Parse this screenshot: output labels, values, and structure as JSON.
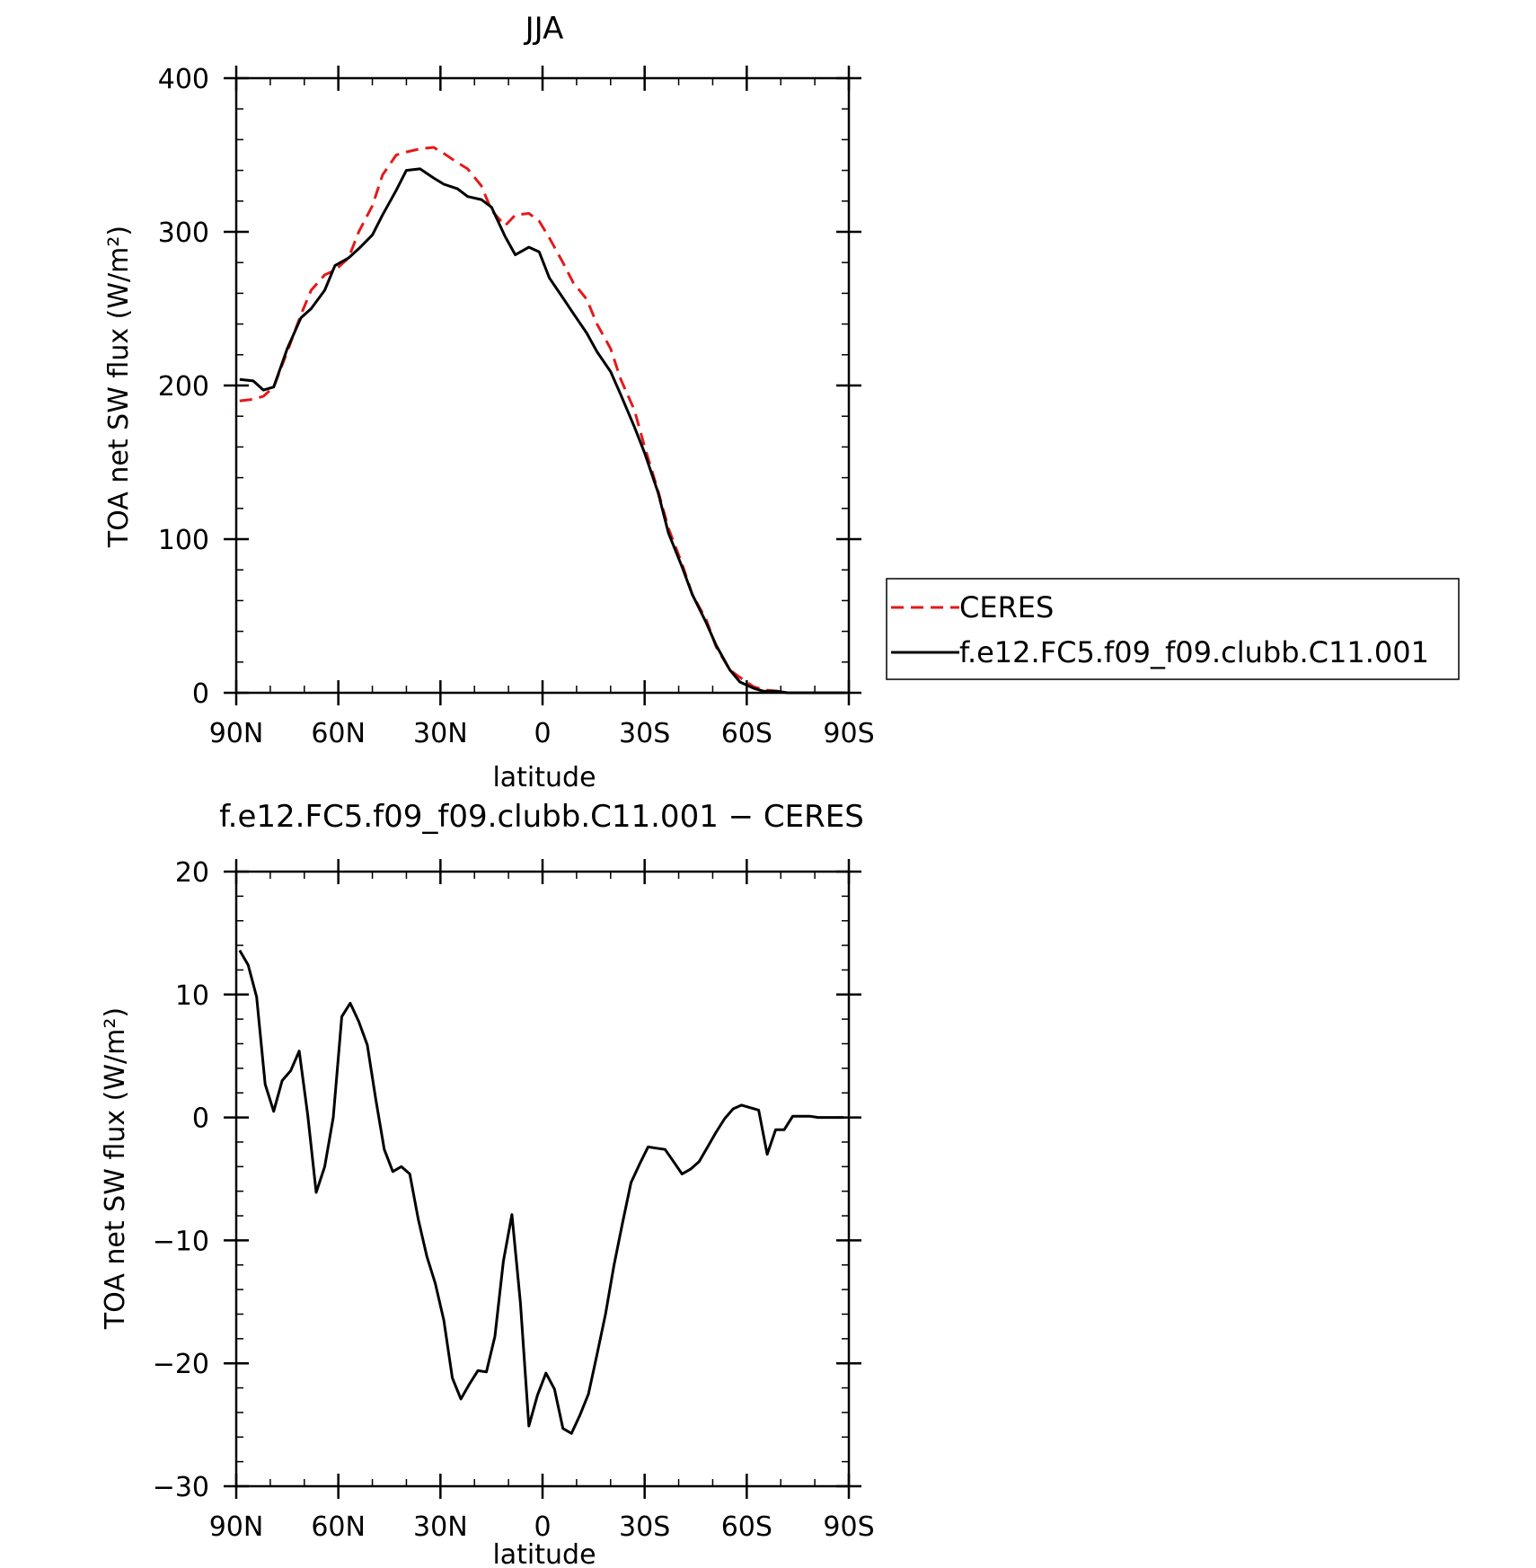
{
  "colors": {
    "ceres": "#e31a1c",
    "model": "#000000",
    "axis": "#000000",
    "background": "#ffffff"
  },
  "chart_data": [
    {
      "type": "line",
      "title": "JJA",
      "xlabel": "latitude",
      "ylabel": "TOA net SW flux (W/m²)",
      "xlim": [
        90,
        -90
      ],
      "ylim": [
        0,
        400
      ],
      "x_direction": "north-to-south",
      "xticks": [
        {
          "value": 90,
          "label": "90N"
        },
        {
          "value": 60,
          "label": "60N"
        },
        {
          "value": 30,
          "label": "30N"
        },
        {
          "value": 0,
          "label": "0"
        },
        {
          "value": -30,
          "label": "30S"
        },
        {
          "value": -60,
          "label": "60S"
        },
        {
          "value": -90,
          "label": "90S"
        }
      ],
      "yticks": [
        0,
        100,
        200,
        300,
        400
      ],
      "legend_position": "right, outside plot",
      "grid": false,
      "series": [
        {
          "name": "CERES",
          "style": "dashed",
          "color": "#e31a1c",
          "x": [
            89,
            85,
            82,
            79,
            75,
            71,
            68,
            64,
            61,
            57,
            54,
            50,
            47,
            43,
            40,
            36,
            32,
            29,
            25,
            22,
            18,
            15,
            11,
            8,
            4,
            1,
            -2,
            -6,
            -9,
            -13,
            -16,
            -20,
            -23,
            -27,
            -30,
            -34,
            -37,
            -41,
            -44,
            -48,
            -51,
            -55,
            -58,
            -62,
            -65,
            -69,
            -72,
            -76,
            -79,
            -83,
            -86,
            -89
          ],
          "y": [
            190,
            191,
            193,
            199,
            222,
            246,
            262,
            272,
            275,
            283,
            300,
            317,
            337,
            350,
            352,
            354,
            355,
            351,
            345,
            341,
            330,
            314,
            304,
            311,
            312,
            307,
            296,
            280,
            267,
            256,
            240,
            224,
            204,
            184,
            160,
            131,
            107,
            84,
            64,
            48,
            30,
            15,
            10,
            4,
            2,
            1,
            0,
            0,
            0,
            0,
            0,
            0
          ]
        },
        {
          "name": "f.e12.FC5.f09_f09.clubb.C11.001",
          "style": "solid",
          "color": "#000000",
          "x": [
            89,
            85,
            82,
            79,
            75,
            71,
            68,
            64,
            61,
            57,
            54,
            50,
            47,
            43,
            40,
            36,
            32,
            29,
            25,
            22,
            18,
            15,
            11,
            8,
            4,
            1,
            -2,
            -6,
            -9,
            -13,
            -16,
            -20,
            -23,
            -27,
            -30,
            -34,
            -37,
            -41,
            -44,
            -48,
            -51,
            -55,
            -58,
            -62,
            -65,
            -69,
            -72,
            -76,
            -79,
            -83,
            -86,
            -89
          ],
          "y": [
            204,
            203,
            197,
            199,
            224,
            244,
            250,
            262,
            278,
            283,
            289,
            298,
            311,
            327,
            340,
            341,
            335,
            331,
            328,
            323,
            321,
            316,
            297,
            285,
            290,
            287,
            270,
            257,
            247,
            234,
            222,
            209,
            194,
            173,
            156,
            130,
            104,
            82,
            64,
            46,
            31,
            15,
            7,
            3,
            1,
            1,
            0,
            0,
            0,
            0,
            0,
            0
          ]
        }
      ]
    },
    {
      "type": "line",
      "title": "f.e12.FC5.f09_f09.clubb.C11.001 − CERES",
      "xlabel": "latitude",
      "ylabel": "TOA net SW flux (W/m²)",
      "xlim": [
        90,
        -90
      ],
      "ylim": [
        -30,
        20
      ],
      "x_direction": "north-to-south",
      "xticks": [
        {
          "value": 90,
          "label": "90N"
        },
        {
          "value": 60,
          "label": "60N"
        },
        {
          "value": 30,
          "label": "30N"
        },
        {
          "value": 0,
          "label": "0"
        },
        {
          "value": -30,
          "label": "30S"
        },
        {
          "value": -60,
          "label": "60S"
        },
        {
          "value": -90,
          "label": "90S"
        }
      ],
      "yticks": [
        -30,
        -20,
        -10,
        0,
        10,
        20
      ],
      "grid": false,
      "series": [
        {
          "name": "",
          "style": "solid",
          "color": "#000000",
          "x": [
            89,
            86.5,
            84,
            81.5,
            79,
            76.5,
            74,
            71.5,
            69,
            66.5,
            64,
            61.5,
            59,
            56.5,
            54,
            51.5,
            49,
            46.5,
            44,
            41.5,
            39,
            36.5,
            34,
            31.5,
            29,
            26.5,
            24,
            21.5,
            19,
            16.5,
            14,
            11.5,
            9,
            6.5,
            4,
            1.5,
            -1,
            -3.5,
            -6,
            -8.5,
            -11,
            -13.5,
            -16,
            -18.5,
            -21,
            -23.5,
            -26,
            -28.5,
            -31,
            -33.5,
            -36,
            -38.5,
            -41,
            -43.5,
            -46,
            -48.5,
            -51,
            -53.5,
            -56,
            -58.5,
            -61,
            -63.5,
            -66,
            -68.5,
            -71,
            -73.5,
            -76,
            -78.5,
            -81,
            -83.5,
            -86,
            -88.5
          ],
          "y": [
            13.6,
            12.4,
            9.8,
            2.7,
            0.5,
            3.0,
            3.8,
            5.4,
            0.2,
            -6.1,
            -4.0,
            0.0,
            8.2,
            9.3,
            7.8,
            5.9,
            1.5,
            -2.6,
            -4.4,
            -4.0,
            -4.6,
            -8.3,
            -11.3,
            -13.5,
            -16.5,
            -21.2,
            -22.9,
            -21.7,
            -20.6,
            -20.7,
            -17.8,
            -11.7,
            -7.9,
            -15.1,
            -25.1,
            -22.6,
            -20.8,
            -22.1,
            -25.3,
            -25.7,
            -24.2,
            -22.5,
            -19.3,
            -16.0,
            -12.0,
            -8.6,
            -5.3,
            -3.8,
            -2.4,
            -2.5,
            -2.6,
            -3.6,
            -4.6,
            -4.2,
            -3.6,
            -2.4,
            -1.2,
            -0.1,
            0.7,
            1.0,
            0.8,
            0.6,
            -3.0,
            -1.0,
            -1.0,
            0.1,
            0.1,
            0.1,
            0.0,
            0.0,
            0.0,
            0.0
          ]
        }
      ]
    }
  ]
}
